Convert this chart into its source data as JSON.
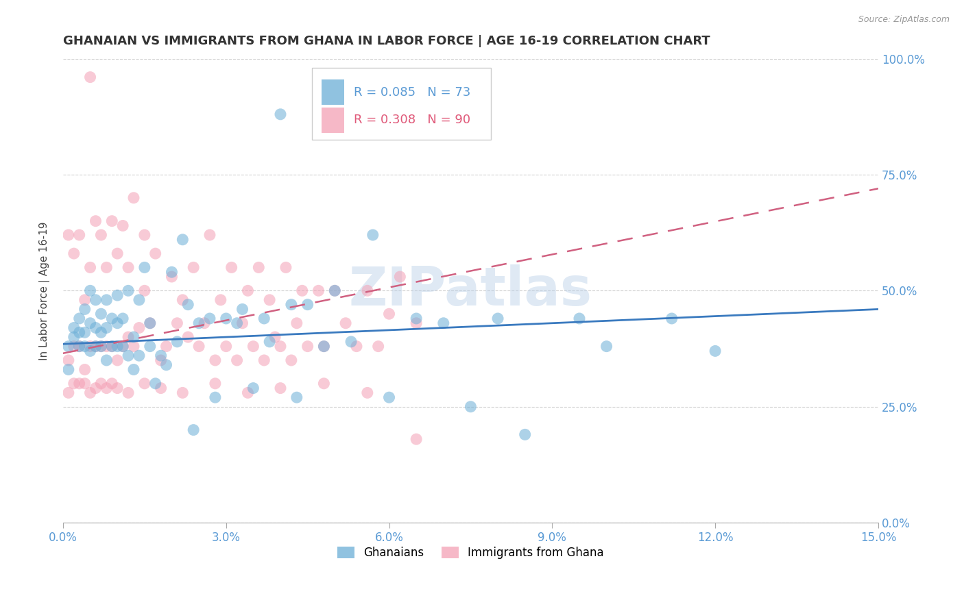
{
  "title": "GHANAIAN VS IMMIGRANTS FROM GHANA IN LABOR FORCE | AGE 16-19 CORRELATION CHART",
  "source": "Source: ZipAtlas.com",
  "xlabel_ticks": [
    "0.0%",
    "3.0%",
    "6.0%",
    "9.0%",
    "12.0%",
    "15.0%"
  ],
  "xlabel_vals": [
    0.0,
    0.03,
    0.06,
    0.09,
    0.12,
    0.15
  ],
  "ylabel_ticks": [
    "0.0%",
    "25.0%",
    "50.0%",
    "75.0%",
    "100.0%"
  ],
  "ylabel_vals": [
    0.0,
    0.25,
    0.5,
    0.75,
    1.0
  ],
  "ylabel_label": "In Labor Force | Age 16-19",
  "xmin": 0.0,
  "xmax": 0.15,
  "ymin": 0.0,
  "ymax": 1.0,
  "watermark": "ZIPatlas",
  "legend_blue_R": "0.085",
  "legend_blue_N": "73",
  "legend_pink_R": "0.308",
  "legend_pink_N": "90",
  "legend_label_blue": "Ghanaians",
  "legend_label_pink": "Immigrants from Ghana",
  "blue_color": "#6baed6",
  "pink_color": "#f4a0b5",
  "blue_line_color": "#3a7abf",
  "pink_line_color": "#d06080",
  "blue_dots_x": [
    0.001,
    0.001,
    0.002,
    0.002,
    0.003,
    0.003,
    0.003,
    0.004,
    0.004,
    0.004,
    0.005,
    0.005,
    0.005,
    0.006,
    0.006,
    0.006,
    0.007,
    0.007,
    0.007,
    0.008,
    0.008,
    0.008,
    0.009,
    0.009,
    0.01,
    0.01,
    0.01,
    0.011,
    0.011,
    0.012,
    0.012,
    0.013,
    0.013,
    0.014,
    0.014,
    0.015,
    0.016,
    0.016,
    0.017,
    0.018,
    0.019,
    0.02,
    0.021,
    0.022,
    0.023,
    0.024,
    0.025,
    0.027,
    0.028,
    0.03,
    0.032,
    0.033,
    0.035,
    0.037,
    0.038,
    0.04,
    0.042,
    0.043,
    0.045,
    0.048,
    0.05,
    0.053,
    0.057,
    0.06,
    0.065,
    0.07,
    0.075,
    0.08,
    0.085,
    0.095,
    0.1,
    0.112,
    0.12
  ],
  "blue_dots_y": [
    0.38,
    0.33,
    0.4,
    0.42,
    0.38,
    0.41,
    0.44,
    0.38,
    0.41,
    0.46,
    0.37,
    0.43,
    0.5,
    0.38,
    0.42,
    0.48,
    0.38,
    0.41,
    0.45,
    0.35,
    0.42,
    0.48,
    0.38,
    0.44,
    0.38,
    0.43,
    0.49,
    0.38,
    0.44,
    0.36,
    0.5,
    0.33,
    0.4,
    0.36,
    0.48,
    0.55,
    0.38,
    0.43,
    0.3,
    0.36,
    0.34,
    0.54,
    0.39,
    0.61,
    0.47,
    0.2,
    0.43,
    0.44,
    0.27,
    0.44,
    0.43,
    0.46,
    0.29,
    0.44,
    0.39,
    0.88,
    0.47,
    0.27,
    0.47,
    0.38,
    0.5,
    0.39,
    0.62,
    0.27,
    0.44,
    0.43,
    0.25,
    0.44,
    0.19,
    0.44,
    0.38,
    0.44,
    0.37
  ],
  "pink_dots_x": [
    0.001,
    0.001,
    0.002,
    0.002,
    0.003,
    0.003,
    0.004,
    0.004,
    0.005,
    0.005,
    0.005,
    0.006,
    0.006,
    0.007,
    0.007,
    0.008,
    0.008,
    0.009,
    0.009,
    0.01,
    0.01,
    0.011,
    0.011,
    0.012,
    0.012,
    0.013,
    0.013,
    0.014,
    0.015,
    0.015,
    0.016,
    0.017,
    0.018,
    0.019,
    0.02,
    0.021,
    0.022,
    0.023,
    0.024,
    0.025,
    0.026,
    0.027,
    0.028,
    0.029,
    0.03,
    0.031,
    0.032,
    0.033,
    0.034,
    0.035,
    0.036,
    0.037,
    0.038,
    0.039,
    0.04,
    0.041,
    0.042,
    0.043,
    0.044,
    0.045,
    0.047,
    0.048,
    0.05,
    0.052,
    0.054,
    0.056,
    0.058,
    0.06,
    0.062,
    0.065,
    0.001,
    0.002,
    0.003,
    0.004,
    0.005,
    0.006,
    0.007,
    0.008,
    0.009,
    0.01,
    0.012,
    0.015,
    0.018,
    0.022,
    0.028,
    0.034,
    0.04,
    0.048,
    0.056,
    0.065
  ],
  "pink_dots_y": [
    0.35,
    0.62,
    0.38,
    0.58,
    0.38,
    0.62,
    0.33,
    0.48,
    0.38,
    0.55,
    0.96,
    0.38,
    0.65,
    0.38,
    0.62,
    0.38,
    0.55,
    0.38,
    0.65,
    0.35,
    0.58,
    0.38,
    0.64,
    0.4,
    0.55,
    0.38,
    0.7,
    0.42,
    0.5,
    0.62,
    0.43,
    0.58,
    0.35,
    0.38,
    0.53,
    0.43,
    0.48,
    0.4,
    0.55,
    0.38,
    0.43,
    0.62,
    0.35,
    0.48,
    0.38,
    0.55,
    0.35,
    0.43,
    0.5,
    0.38,
    0.55,
    0.35,
    0.48,
    0.4,
    0.38,
    0.55,
    0.35,
    0.43,
    0.5,
    0.38,
    0.5,
    0.38,
    0.5,
    0.43,
    0.38,
    0.5,
    0.38,
    0.45,
    0.53,
    0.43,
    0.28,
    0.3,
    0.3,
    0.3,
    0.28,
    0.29,
    0.3,
    0.29,
    0.3,
    0.29,
    0.28,
    0.3,
    0.29,
    0.28,
    0.3,
    0.28,
    0.29,
    0.3,
    0.28,
    0.18
  ],
  "blue_line_x0": 0.0,
  "blue_line_x1": 0.15,
  "blue_line_y0": 0.385,
  "blue_line_y1": 0.46,
  "pink_line_x0": 0.0,
  "pink_line_x1": 0.15,
  "pink_line_y0": 0.365,
  "pink_line_y1": 0.72
}
